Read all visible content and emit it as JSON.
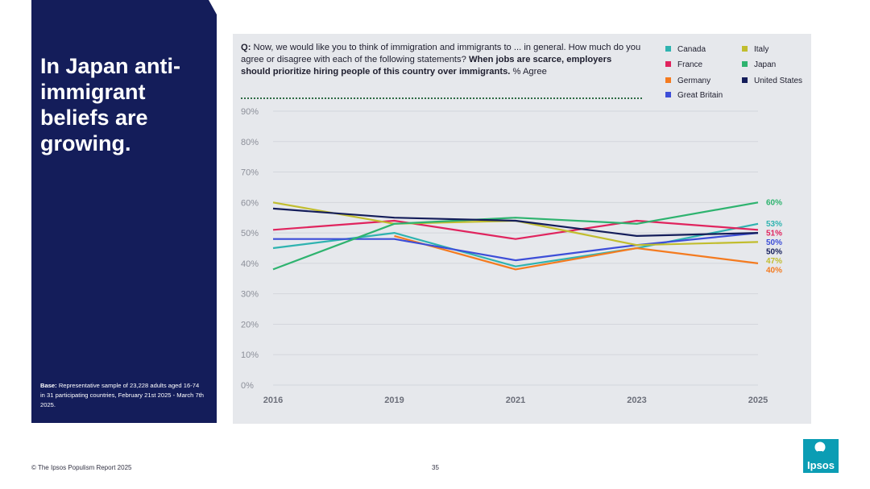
{
  "headline": "In Japan anti-immigrant beliefs are growing.",
  "base_note": {
    "label": "Base:",
    "text": "Representative sample of 23,228 adults aged 16-74 in 31 participating countries, February 21st 2025 - March 7th 2025."
  },
  "question": {
    "prefix": "Q:",
    "text": "Now, we would like you to think of immigration and immigrants to ... in general. How much do you agree or disagree with each of the following statements?",
    "bold_text": "When jobs are scarce, employers should prioritize hiring people of this country over immigrants.",
    "suffix": "% Agree"
  },
  "footer": {
    "copyright": "© The Ipsos Populism Report 2025",
    "page_number": "35",
    "logo_text": "Ipsos"
  },
  "colors": {
    "panel": "#141d5a",
    "chart_bg": "#e6e8ec",
    "logo": "#0b9db4"
  },
  "chart_data": {
    "type": "line",
    "title": "",
    "xlabel": "",
    "ylabel": "",
    "x": [
      "2016",
      "2019",
      "2021",
      "2023",
      "2025"
    ],
    "ylim": [
      0,
      90
    ],
    "yticks": [
      0,
      10,
      20,
      30,
      40,
      50,
      60,
      70,
      80,
      90
    ],
    "ytick_labels": [
      "0%",
      "10%",
      "20%",
      "30%",
      "40%",
      "50%",
      "60%",
      "70%",
      "80%",
      "90%"
    ],
    "grid": true,
    "legend_position": "top-right",
    "series": [
      {
        "name": "Canada",
        "color": "#2fb3b0",
        "values": [
          45,
          50,
          39,
          45,
          53
        ],
        "end_label": "53%"
      },
      {
        "name": "France",
        "color": "#e0245e",
        "values": [
          51,
          54,
          48,
          54,
          51
        ],
        "end_label": "51%"
      },
      {
        "name": "Germany",
        "color": "#f47b20",
        "values": [
          null,
          49,
          38,
          45,
          40
        ],
        "end_label": "40%"
      },
      {
        "name": "Great Britain",
        "color": "#3d4ed8",
        "values": [
          48,
          48,
          41,
          46,
          50
        ],
        "end_label": "50%"
      },
      {
        "name": "Italy",
        "color": "#c1bd2e",
        "values": [
          60,
          53,
          54,
          46,
          47
        ],
        "end_label": "47%"
      },
      {
        "name": "Japan",
        "color": "#2eb36f",
        "values": [
          38,
          53,
          55,
          53,
          60
        ],
        "end_label": "60%"
      },
      {
        "name": "United States",
        "color": "#141d5a",
        "values": [
          58,
          55,
          54,
          49,
          50
        ],
        "end_label": "50%"
      }
    ]
  }
}
